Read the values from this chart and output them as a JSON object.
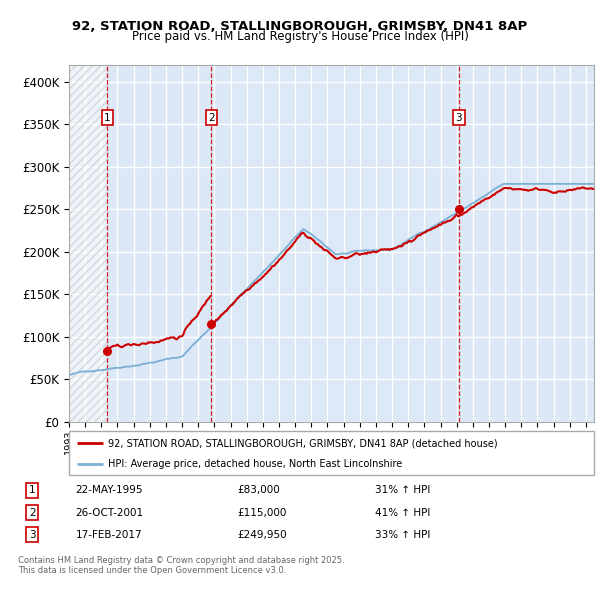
{
  "title_line1": "92, STATION ROAD, STALLINGBOROUGH, GRIMSBY, DN41 8AP",
  "title_line2": "Price paid vs. HM Land Registry's House Price Index (HPI)",
  "ylim": [
    0,
    420000
  ],
  "yticks": [
    0,
    50000,
    100000,
    150000,
    200000,
    250000,
    300000,
    350000,
    400000
  ],
  "ytick_labels": [
    "£0",
    "£50K",
    "£100K",
    "£150K",
    "£200K",
    "£250K",
    "£300K",
    "£350K",
    "£400K"
  ],
  "transactions": [
    {
      "num": 1,
      "date": "22-MAY-1995",
      "year": 1995.38,
      "price": 83000,
      "hpi_pct": "31% ↑ HPI"
    },
    {
      "num": 2,
      "date": "26-OCT-2001",
      "year": 2001.82,
      "price": 115000,
      "hpi_pct": "41% ↑ HPI"
    },
    {
      "num": 3,
      "date": "17-FEB-2017",
      "year": 2017.12,
      "price": 249950,
      "hpi_pct": "33% ↑ HPI"
    }
  ],
  "legend_red": "92, STATION ROAD, STALLINGBOROUGH, GRIMSBY, DN41 8AP (detached house)",
  "legend_blue": "HPI: Average price, detached house, North East Lincolnshire",
  "footnote": "Contains HM Land Registry data © Crown copyright and database right 2025.\nThis data is licensed under the Open Government Licence v3.0.",
  "red_color": "#cc0000",
  "blue_color": "#7bafd4",
  "background_color": "#dce8f5",
  "xmin": 1993,
  "xmax": 2025.5
}
